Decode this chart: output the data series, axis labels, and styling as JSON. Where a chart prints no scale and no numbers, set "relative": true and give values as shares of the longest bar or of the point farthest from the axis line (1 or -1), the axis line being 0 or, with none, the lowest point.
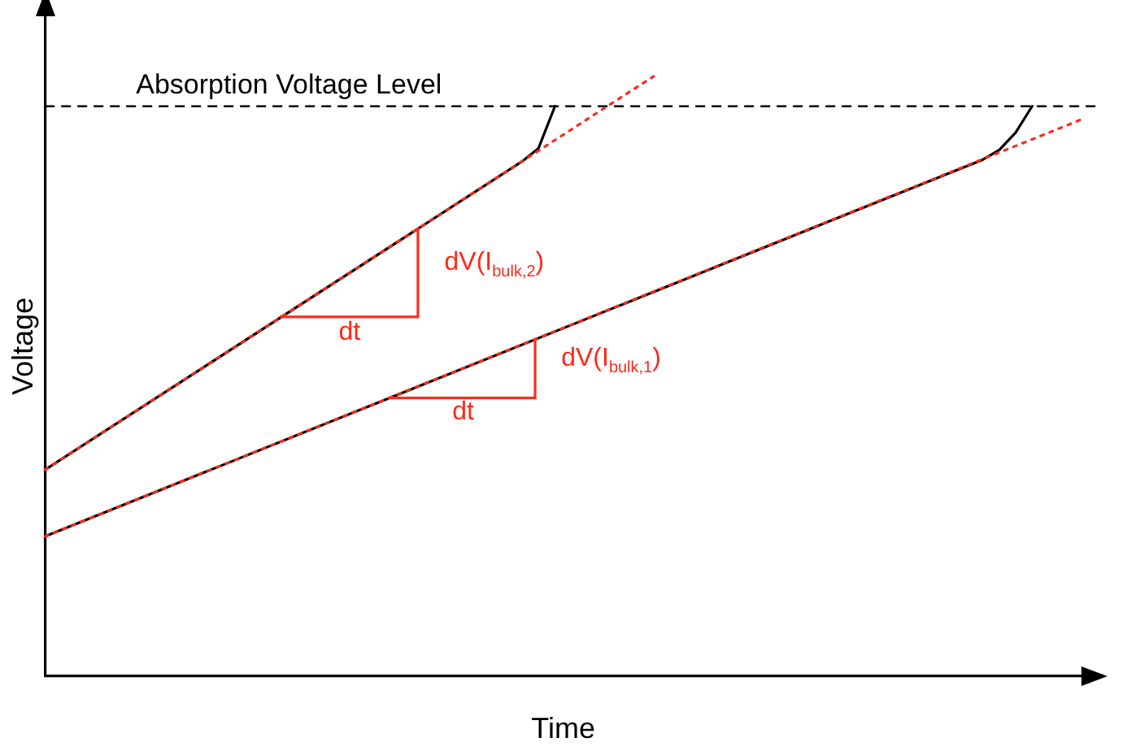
{
  "chart_data": {
    "type": "line",
    "xlabel": "Time",
    "ylabel": "Voltage",
    "relative": true,
    "grid": false,
    "legend": false,
    "marker": "none",
    "categories": [
      null,
      null,
      null,
      null,
      null,
      null,
      null,
      null,
      null,
      null,
      null,
      null,
      null,
      null,
      null,
      null,
      null,
      null,
      null,
      null,
      null,
      null,
      null,
      null,
      null,
      null,
      null,
      null,
      null,
      null,
      null,
      null,
      null,
      null,
      null,
      null,
      null,
      null,
      null,
      null,
      null,
      null,
      null,
      null,
      null,
      null,
      null,
      null,
      null,
      null,
      null,
      null,
      null,
      null,
      null,
      null,
      null,
      null,
      null,
      null,
      null,
      null,
      null,
      null
    ],
    "series": [
      {
        "color": "#000000",
        "line_style": "solid",
        "values": [
          0.344,
          null,
          null,
          null,
          null,
          null,
          null,
          null,
          null,
          null,
          null,
          null,
          null,
          null,
          null,
          null,
          null,
          null,
          null,
          null,
          null,
          null,
          null,
          null,
          null,
          null,
          null,
          null,
          null,
          0.858,
          0.88,
          0.95,
          null,
          null,
          null,
          null,
          null,
          null,
          null,
          null,
          null,
          null,
          null,
          null,
          null,
          null,
          null,
          null,
          null,
          null,
          null,
          null,
          null,
          null,
          null,
          null,
          null,
          null,
          null,
          null,
          null,
          null,
          null,
          null
        ]
      },
      {
        "color": "#ff2a1a",
        "line_style": "dotted",
        "values": [
          0.344,
          null,
          null,
          null,
          null,
          null,
          null,
          null,
          null,
          null,
          null,
          null,
          null,
          null,
          null,
          null,
          null,
          null,
          null,
          null,
          null,
          null,
          null,
          null,
          null,
          null,
          null,
          null,
          null,
          null,
          null,
          null,
          null,
          null,
          null,
          null,
          null,
          1,
          null,
          null,
          null,
          null,
          null,
          null,
          null,
          null,
          null,
          null,
          null,
          null,
          null,
          null,
          null,
          null,
          null,
          null,
          null,
          null,
          null,
          null,
          null,
          null,
          null,
          null
        ]
      },
      {
        "color": "#000000",
        "line_style": "solid",
        "values": [
          0.233,
          null,
          null,
          null,
          null,
          null,
          null,
          null,
          null,
          null,
          null,
          null,
          null,
          null,
          null,
          null,
          null,
          null,
          null,
          null,
          null,
          null,
          null,
          null,
          null,
          null,
          null,
          null,
          null,
          null,
          null,
          null,
          null,
          null,
          null,
          null,
          null,
          null,
          null,
          null,
          null,
          null,
          null,
          null,
          null,
          null,
          null,
          null,
          null,
          null,
          null,
          null,
          null,
          null,
          null,
          null,
          null,
          0.861,
          0.877,
          0.906,
          0.95,
          null,
          null,
          null
        ]
      },
      {
        "color": "#ff2a1a",
        "line_style": "dotted",
        "values": [
          0.233,
          null,
          null,
          null,
          null,
          null,
          null,
          null,
          null,
          null,
          null,
          null,
          null,
          null,
          null,
          null,
          null,
          null,
          null,
          null,
          null,
          null,
          null,
          null,
          null,
          null,
          null,
          null,
          null,
          null,
          null,
          null,
          null,
          null,
          null,
          null,
          null,
          null,
          null,
          null,
          null,
          null,
          null,
          null,
          null,
          null,
          null,
          null,
          null,
          null,
          null,
          null,
          null,
          null,
          null,
          null,
          null,
          null,
          null,
          null,
          null,
          null,
          null,
          0.928
        ]
      }
    ],
    "ref_lines": [
      {
        "axis": "y",
        "value": 0.95,
        "label": "Absorption Voltage Level",
        "color": "#000000",
        "line_style": "dashed"
      }
    ],
    "annotations": [
      "dt",
      "dV(I$_{bulk,2}$)",
      "dt",
      "dV(I$_{bulk,1}$)"
    ]
  }
}
